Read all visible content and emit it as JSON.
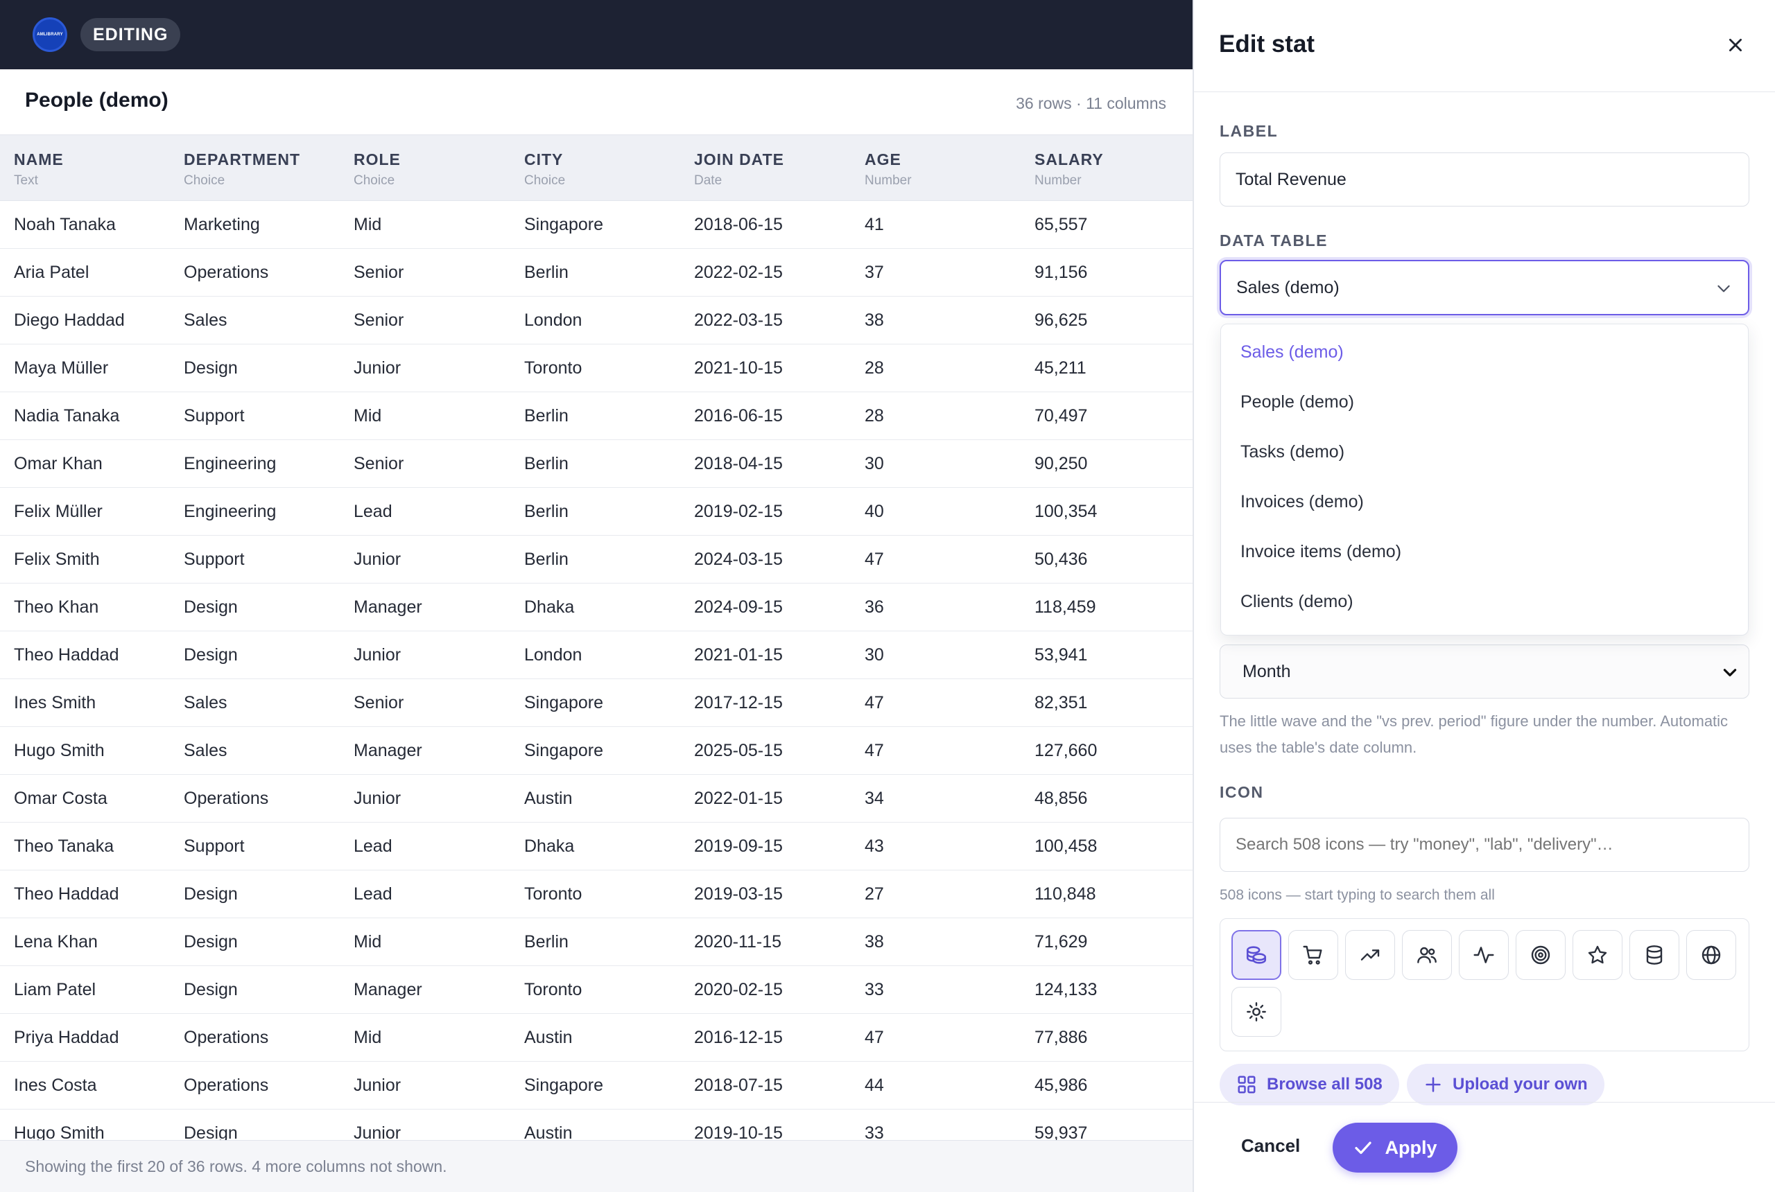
{
  "topbar": {
    "logo_text": "AMLIBRARY",
    "mode_label": "EDITING"
  },
  "table": {
    "title": "People (demo)",
    "meta": "36 rows · 11 columns",
    "columns": [
      {
        "name": "NAME",
        "type": "Text"
      },
      {
        "name": "DEPARTMENT",
        "type": "Choice"
      },
      {
        "name": "ROLE",
        "type": "Choice"
      },
      {
        "name": "CITY",
        "type": "Choice"
      },
      {
        "name": "JOIN DATE",
        "type": "Date"
      },
      {
        "name": "AGE",
        "type": "Number"
      },
      {
        "name": "SALARY",
        "type": "Number"
      }
    ],
    "rows": [
      [
        "Noah Tanaka",
        "Marketing",
        "Mid",
        "Singapore",
        "2018-06-15",
        "41",
        "65,557"
      ],
      [
        "Aria Patel",
        "Operations",
        "Senior",
        "Berlin",
        "2022-02-15",
        "37",
        "91,156"
      ],
      [
        "Diego Haddad",
        "Sales",
        "Senior",
        "London",
        "2022-03-15",
        "38",
        "96,625"
      ],
      [
        "Maya Müller",
        "Design",
        "Junior",
        "Toronto",
        "2021-10-15",
        "28",
        "45,211"
      ],
      [
        "Nadia Tanaka",
        "Support",
        "Mid",
        "Berlin",
        "2016-06-15",
        "28",
        "70,497"
      ],
      [
        "Omar Khan",
        "Engineering",
        "Senior",
        "Berlin",
        "2018-04-15",
        "30",
        "90,250"
      ],
      [
        "Felix Müller",
        "Engineering",
        "Lead",
        "Berlin",
        "2019-02-15",
        "40",
        "100,354"
      ],
      [
        "Felix Smith",
        "Support",
        "Junior",
        "Berlin",
        "2024-03-15",
        "47",
        "50,436"
      ],
      [
        "Theo Khan",
        "Design",
        "Manager",
        "Dhaka",
        "2024-09-15",
        "36",
        "118,459"
      ],
      [
        "Theo Haddad",
        "Design",
        "Junior",
        "London",
        "2021-01-15",
        "30",
        "53,941"
      ],
      [
        "Ines Smith",
        "Sales",
        "Senior",
        "Singapore",
        "2017-12-15",
        "47",
        "82,351"
      ],
      [
        "Hugo Smith",
        "Sales",
        "Manager",
        "Singapore",
        "2025-05-15",
        "47",
        "127,660"
      ],
      [
        "Omar Costa",
        "Operations",
        "Junior",
        "Austin",
        "2022-01-15",
        "34",
        "48,856"
      ],
      [
        "Theo Tanaka",
        "Support",
        "Lead",
        "Dhaka",
        "2019-09-15",
        "43",
        "100,458"
      ],
      [
        "Theo Haddad",
        "Design",
        "Lead",
        "Toronto",
        "2019-03-15",
        "27",
        "110,848"
      ],
      [
        "Lena Khan",
        "Design",
        "Mid",
        "Berlin",
        "2020-11-15",
        "38",
        "71,629"
      ],
      [
        "Liam Patel",
        "Design",
        "Manager",
        "Toronto",
        "2020-02-15",
        "33",
        "124,133"
      ],
      [
        "Priya Haddad",
        "Operations",
        "Mid",
        "Austin",
        "2016-12-15",
        "47",
        "77,886"
      ],
      [
        "Ines Costa",
        "Operations",
        "Junior",
        "Singapore",
        "2018-07-15",
        "44",
        "45,986"
      ],
      [
        "Hugo Smith",
        "Design",
        "Junior",
        "Austin",
        "2019-10-15",
        "33",
        "59,937"
      ]
    ],
    "footer": "Showing the first 20 of 36 rows. 4 more columns not shown."
  },
  "panel": {
    "title": "Edit stat",
    "label_section": "LABEL",
    "label_value": "Total Revenue",
    "data_table_section": "DATA TABLE",
    "data_table_value": "Sales (demo)",
    "data_table_options": [
      "Sales (demo)",
      "People (demo)",
      "Tasks (demo)",
      "Invoices (demo)",
      "Invoice items (demo)",
      "Clients (demo)"
    ],
    "period_value": "Month",
    "help_text": "The little wave and the \"vs prev. period\" figure under the number. Automatic uses the table's date column.",
    "icon_section": "ICON",
    "icon_search_placeholder": "Search 508 icons — try \"money\", \"lab\", \"delivery\"…",
    "icon_count_text": "508 icons — start typing to search them all",
    "icons": [
      "coins-icon",
      "cart-icon",
      "trending-up-icon",
      "users-icon",
      "activity-icon",
      "target-icon",
      "star-icon",
      "database-icon",
      "globe-icon",
      "sun-icon"
    ],
    "browse_label": "Browse all 508",
    "upload_label": "Upload your own",
    "cancel_label": "Cancel",
    "apply_label": "Apply"
  },
  "colors": {
    "topbar": "#1d2233",
    "accent": "#6c5ce7",
    "accent_soft": "#ecebfb"
  }
}
